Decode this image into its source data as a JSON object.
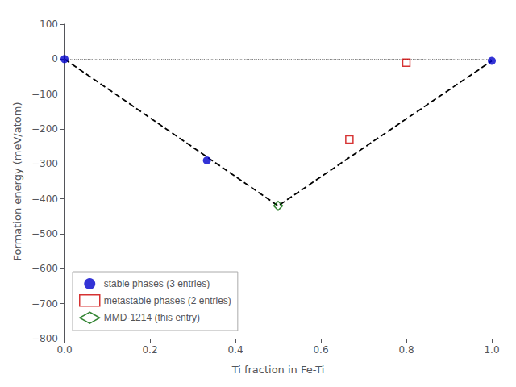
{
  "chart_data": {
    "type": "scatter",
    "xlabel": "Ti fraction in Fe-Ti",
    "ylabel": "Formation energy (meV/atom)",
    "xlim": [
      0.0,
      1.0
    ],
    "ylim": [
      -800,
      100
    ],
    "xticks": [
      {
        "value": 0.0,
        "label": "0.0"
      },
      0.2,
      0.4,
      0.6,
      0.8,
      {
        "value": 1.0,
        "label": "1.0"
      }
    ],
    "yticks": [
      100,
      0,
      {
        "value": -100,
        "label": "−100"
      },
      {
        "value": -200,
        "label": "−200"
      },
      {
        "value": -300,
        "label": "−300"
      },
      {
        "value": -400,
        "label": "−400"
      },
      {
        "value": -500,
        "label": "−500"
      },
      {
        "value": -600,
        "label": "−600"
      },
      {
        "value": -700,
        "label": "−700"
      },
      {
        "value": -800,
        "label": "−800"
      }
    ],
    "grid": false,
    "legend": "lower left",
    "series": [
      {
        "type": "hline",
        "line_style": "dotted",
        "color": "#808080",
        "values": [
          0.0
        ]
      },
      {
        "type": "line",
        "line_style": "dashed",
        "color": "#000000",
        "x": [
          0.0,
          0.5,
          1.0
        ],
        "values": [
          0.0,
          -420.0,
          -5.0
        ]
      },
      {
        "name": "stable phases (3 entries)",
        "type": "scatter",
        "marker": "circle",
        "color": "#0000cc",
        "x": [
          0.0,
          0.3333,
          1.0
        ],
        "values": [
          0.0,
          -290.0,
          -5.0
        ]
      },
      {
        "name": "metastable phases (2 entries)",
        "type": "scatter",
        "marker": "open_square",
        "color": "#cc0000",
        "x": [
          0.6667,
          0.8
        ],
        "values": [
          -230.0,
          -10.0
        ]
      },
      {
        "name": "MMD-1214 (this entry)",
        "type": "scatter",
        "marker": "open_diamond",
        "color": "#006600",
        "x": [
          0.5
        ],
        "values": [
          -420.0
        ]
      }
    ]
  }
}
